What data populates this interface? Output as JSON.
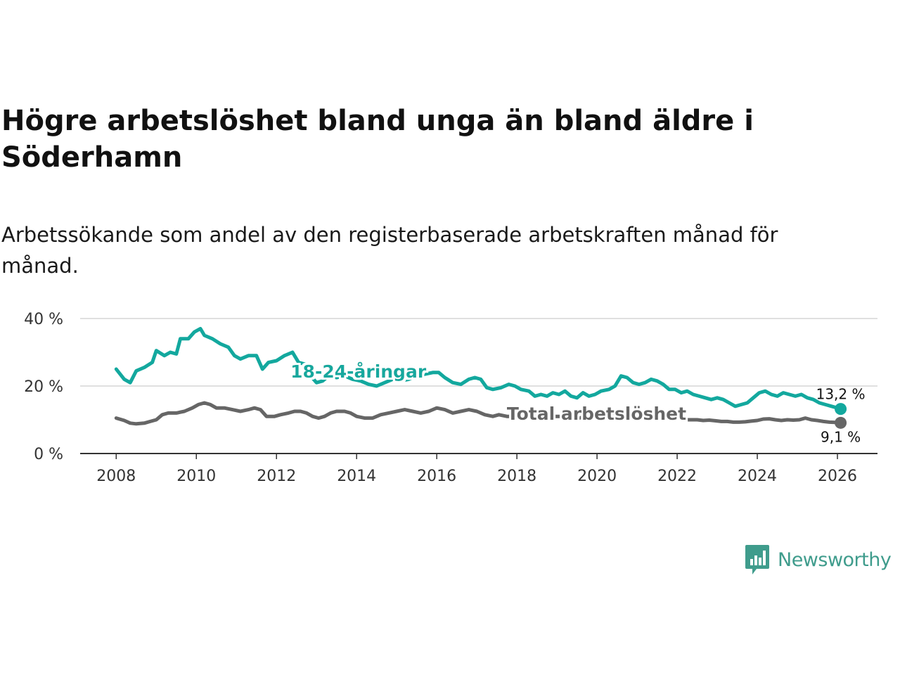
{
  "title": "Högre arbetslöshet bland unga än bland äldre i Söderhamn",
  "subtitle": "Arbetssökande som andel av den registerbaserade arbetskraften månad för månad.",
  "brand": {
    "name": "Newsworthy",
    "color": "#3f9c8c",
    "icon": "bar-chart-badge-icon"
  },
  "chart_data": {
    "type": "line",
    "title": "Högre arbetslöshet bland unga än bland äldre i Söderhamn",
    "xlabel": "",
    "ylabel": "",
    "ylim": [
      0,
      40
    ],
    "xlim": [
      2007.1,
      2027.0
    ],
    "y_ticks": [
      0,
      20,
      40
    ],
    "y_tick_labels": [
      "0 %",
      "20 %",
      "40 %"
    ],
    "x_ticks": [
      2008,
      2010,
      2012,
      2014,
      2016,
      2018,
      2020,
      2022,
      2024,
      2026
    ],
    "x_tick_labels": [
      "2008",
      "2010",
      "2012",
      "2014",
      "2016",
      "2018",
      "2020",
      "2022",
      "2024",
      "2026"
    ],
    "grid": "horizontal",
    "series": [
      {
        "name": "18-24-åringar",
        "color": "#13a89e",
        "end_label": "13,2 %",
        "points": [
          [
            2008.0,
            25.0
          ],
          [
            2008.2,
            22.0
          ],
          [
            2008.35,
            21.0
          ],
          [
            2008.5,
            24.5
          ],
          [
            2008.7,
            25.5
          ],
          [
            2008.9,
            27.0
          ],
          [
            2009.0,
            30.5
          ],
          [
            2009.2,
            29.0
          ],
          [
            2009.35,
            30.0
          ],
          [
            2009.5,
            29.5
          ],
          [
            2009.6,
            34.0
          ],
          [
            2009.8,
            34.0
          ],
          [
            2009.95,
            36.0
          ],
          [
            2010.1,
            37.0
          ],
          [
            2010.2,
            35.0
          ],
          [
            2010.4,
            34.0
          ],
          [
            2010.6,
            32.5
          ],
          [
            2010.8,
            31.5
          ],
          [
            2010.95,
            29.0
          ],
          [
            2011.1,
            28.0
          ],
          [
            2011.3,
            29.0
          ],
          [
            2011.5,
            29.0
          ],
          [
            2011.65,
            25.0
          ],
          [
            2011.8,
            27.0
          ],
          [
            2012.0,
            27.5
          ],
          [
            2012.2,
            29.0
          ],
          [
            2012.4,
            30.0
          ],
          [
            2012.55,
            27.0
          ],
          [
            2012.7,
            26.5
          ],
          [
            2012.85,
            23.0
          ],
          [
            2013.0,
            21.0
          ],
          [
            2013.15,
            21.5
          ],
          [
            2013.3,
            23.0
          ],
          [
            2013.5,
            22.5
          ],
          [
            2013.7,
            23.0
          ],
          [
            2013.9,
            22.0
          ],
          [
            2014.1,
            21.5
          ],
          [
            2014.3,
            20.5
          ],
          [
            2014.5,
            20.0
          ],
          [
            2014.7,
            21.0
          ],
          [
            2014.9,
            22.0
          ],
          [
            2015.1,
            21.5
          ],
          [
            2015.3,
            22.0
          ],
          [
            2015.5,
            23.0
          ],
          [
            2015.7,
            23.5
          ],
          [
            2015.9,
            24.0
          ],
          [
            2016.05,
            24.0
          ],
          [
            2016.2,
            22.5
          ],
          [
            2016.4,
            21.0
          ],
          [
            2016.6,
            20.5
          ],
          [
            2016.8,
            22.0
          ],
          [
            2016.95,
            22.5
          ],
          [
            2017.1,
            22.0
          ],
          [
            2017.25,
            19.5
          ],
          [
            2017.4,
            19.0
          ],
          [
            2017.6,
            19.5
          ],
          [
            2017.8,
            20.5
          ],
          [
            2017.95,
            20.0
          ],
          [
            2018.1,
            19.0
          ],
          [
            2018.3,
            18.5
          ],
          [
            2018.45,
            17.0
          ],
          [
            2018.6,
            17.5
          ],
          [
            2018.75,
            17.0
          ],
          [
            2018.9,
            18.0
          ],
          [
            2019.05,
            17.5
          ],
          [
            2019.2,
            18.5
          ],
          [
            2019.35,
            17.0
          ],
          [
            2019.5,
            16.5
          ],
          [
            2019.65,
            18.0
          ],
          [
            2019.8,
            17.0
          ],
          [
            2019.95,
            17.5
          ],
          [
            2020.1,
            18.5
          ],
          [
            2020.3,
            19.0
          ],
          [
            2020.45,
            20.0
          ],
          [
            2020.6,
            23.0
          ],
          [
            2020.75,
            22.5
          ],
          [
            2020.9,
            21.0
          ],
          [
            2021.05,
            20.5
          ],
          [
            2021.2,
            21.0
          ],
          [
            2021.35,
            22.0
          ],
          [
            2021.5,
            21.5
          ],
          [
            2021.65,
            20.5
          ],
          [
            2021.8,
            19.0
          ],
          [
            2021.95,
            19.0
          ],
          [
            2022.1,
            18.0
          ],
          [
            2022.25,
            18.5
          ],
          [
            2022.4,
            17.5
          ],
          [
            2022.55,
            17.0
          ],
          [
            2022.7,
            16.5
          ],
          [
            2022.85,
            16.0
          ],
          [
            2023.0,
            16.5
          ],
          [
            2023.15,
            16.0
          ],
          [
            2023.3,
            15.0
          ],
          [
            2023.45,
            14.0
          ],
          [
            2023.6,
            14.5
          ],
          [
            2023.75,
            15.0
          ],
          [
            2023.9,
            16.5
          ],
          [
            2024.05,
            18.0
          ],
          [
            2024.2,
            18.5
          ],
          [
            2024.35,
            17.5
          ],
          [
            2024.5,
            17.0
          ],
          [
            2024.65,
            18.0
          ],
          [
            2024.8,
            17.5
          ],
          [
            2024.95,
            17.0
          ],
          [
            2025.1,
            17.5
          ],
          [
            2025.25,
            16.5
          ],
          [
            2025.4,
            16.0
          ],
          [
            2025.55,
            15.0
          ],
          [
            2025.7,
            14.5
          ],
          [
            2025.85,
            14.0
          ],
          [
            2026.0,
            13.5
          ],
          [
            2026.08,
            13.2
          ]
        ]
      },
      {
        "name": "Total arbetslöshet",
        "color": "#666666",
        "end_label": "9,1 %",
        "points": [
          [
            2008.0,
            10.5
          ],
          [
            2008.2,
            9.8
          ],
          [
            2008.35,
            9.0
          ],
          [
            2008.5,
            8.8
          ],
          [
            2008.7,
            9.0
          ],
          [
            2008.85,
            9.5
          ],
          [
            2009.0,
            10.0
          ],
          [
            2009.15,
            11.5
          ],
          [
            2009.3,
            12.0
          ],
          [
            2009.5,
            12.0
          ],
          [
            2009.7,
            12.5
          ],
          [
            2009.9,
            13.5
          ],
          [
            2010.05,
            14.5
          ],
          [
            2010.2,
            15.0
          ],
          [
            2010.35,
            14.5
          ],
          [
            2010.5,
            13.5
          ],
          [
            2010.7,
            13.5
          ],
          [
            2010.9,
            13.0
          ],
          [
            2011.1,
            12.5
          ],
          [
            2011.3,
            13.0
          ],
          [
            2011.45,
            13.5
          ],
          [
            2011.6,
            13.0
          ],
          [
            2011.75,
            11.0
          ],
          [
            2011.95,
            11.0
          ],
          [
            2012.1,
            11.5
          ],
          [
            2012.3,
            12.0
          ],
          [
            2012.45,
            12.5
          ],
          [
            2012.6,
            12.5
          ],
          [
            2012.75,
            12.0
          ],
          [
            2012.9,
            11.0
          ],
          [
            2013.05,
            10.5
          ],
          [
            2013.2,
            11.0
          ],
          [
            2013.35,
            12.0
          ],
          [
            2013.5,
            12.5
          ],
          [
            2013.7,
            12.5
          ],
          [
            2013.85,
            12.0
          ],
          [
            2014.0,
            11.0
          ],
          [
            2014.2,
            10.5
          ],
          [
            2014.4,
            10.5
          ],
          [
            2014.6,
            11.5
          ],
          [
            2014.8,
            12.0
          ],
          [
            2015.0,
            12.5
          ],
          [
            2015.2,
            13.0
          ],
          [
            2015.4,
            12.5
          ],
          [
            2015.6,
            12.0
          ],
          [
            2015.8,
            12.5
          ],
          [
            2016.0,
            13.5
          ],
          [
            2016.2,
            13.0
          ],
          [
            2016.4,
            12.0
          ],
          [
            2016.6,
            12.5
          ],
          [
            2016.8,
            13.0
          ],
          [
            2017.0,
            12.5
          ],
          [
            2017.2,
            11.5
          ],
          [
            2017.4,
            11.0
          ],
          [
            2017.55,
            11.5
          ],
          [
            2017.75,
            11.0
          ],
          [
            2017.95,
            11.0
          ],
          [
            2018.15,
            11.5
          ],
          [
            2018.35,
            11.0
          ],
          [
            2018.55,
            11.0
          ],
          [
            2018.75,
            11.5
          ],
          [
            2018.95,
            11.0
          ],
          [
            2019.15,
            11.0
          ],
          [
            2019.35,
            10.5
          ],
          [
            2019.55,
            10.5
          ],
          [
            2019.75,
            11.0
          ],
          [
            2019.95,
            11.0
          ],
          [
            2020.15,
            11.5
          ],
          [
            2020.35,
            11.5
          ],
          [
            2020.55,
            12.0
          ],
          [
            2020.75,
            11.5
          ],
          [
            2020.95,
            11.5
          ],
          [
            2021.15,
            11.0
          ],
          [
            2021.35,
            11.0
          ],
          [
            2021.55,
            10.5
          ],
          [
            2021.75,
            10.5
          ],
          [
            2021.95,
            10.5
          ],
          [
            2022.15,
            10.0
          ],
          [
            2022.35,
            10.0
          ],
          [
            2022.5,
            10.0
          ],
          [
            2022.65,
            9.8
          ],
          [
            2022.8,
            9.9
          ],
          [
            2022.95,
            9.7
          ],
          [
            2023.1,
            9.5
          ],
          [
            2023.25,
            9.5
          ],
          [
            2023.4,
            9.3
          ],
          [
            2023.55,
            9.3
          ],
          [
            2023.7,
            9.4
          ],
          [
            2023.85,
            9.6
          ],
          [
            2024.0,
            9.8
          ],
          [
            2024.15,
            10.2
          ],
          [
            2024.3,
            10.3
          ],
          [
            2024.45,
            10.0
          ],
          [
            2024.6,
            9.8
          ],
          [
            2024.75,
            10.0
          ],
          [
            2024.9,
            9.9
          ],
          [
            2025.05,
            10.0
          ],
          [
            2025.2,
            10.5
          ],
          [
            2025.35,
            10.0
          ],
          [
            2025.5,
            9.8
          ],
          [
            2025.65,
            9.5
          ],
          [
            2025.8,
            9.3
          ],
          [
            2025.95,
            9.2
          ],
          [
            2026.08,
            9.1
          ]
        ]
      }
    ]
  }
}
